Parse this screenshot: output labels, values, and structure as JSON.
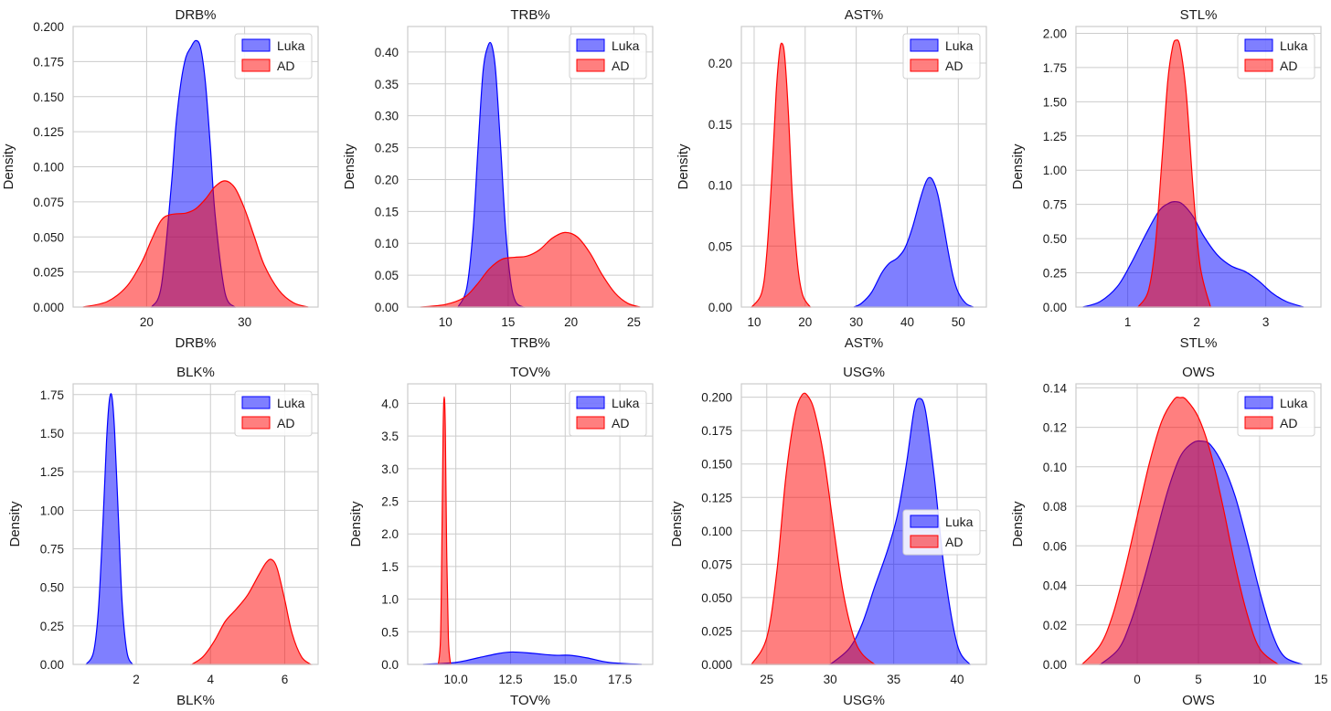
{
  "colors": {
    "luka": "#0000ff",
    "ad": "#ff0000",
    "grid": "#cccccc",
    "axis": "#cccccc"
  },
  "chart_data": [
    {
      "type": "area",
      "title": "DRB%",
      "xlabel": "DRB%",
      "ylabel": "Density",
      "xlim": [
        12.5,
        37.5
      ],
      "ylim": [
        0,
        0.2
      ],
      "xticks": [
        20,
        30
      ],
      "xtick_labels": [
        "20",
        "30"
      ],
      "yticks": [
        0,
        0.025,
        0.05,
        0.075,
        0.1,
        0.125,
        0.15,
        0.175,
        0.2
      ],
      "ytick_labels": [
        "0.000",
        "0.025",
        "0.050",
        "0.075",
        "0.100",
        "0.125",
        "0.150",
        "0.175",
        "0.200"
      ],
      "legend": {
        "position": "top-right",
        "entries": [
          "Luka",
          "AD"
        ]
      },
      "series": [
        {
          "name": "Luka",
          "color": "#0000ff",
          "x": [
            20.5,
            21.5,
            22.5,
            23.0,
            23.5,
            24.0,
            24.5,
            25.0,
            25.5,
            26.0,
            26.5,
            27.0,
            28.0,
            29.0
          ],
          "y": [
            0,
            0.015,
            0.085,
            0.13,
            0.16,
            0.178,
            0.185,
            0.19,
            0.185,
            0.16,
            0.115,
            0.065,
            0.01,
            0
          ]
        },
        {
          "name": "AD",
          "color": "#ff0000",
          "x": [
            13.5,
            16.0,
            18.0,
            19.5,
            20.5,
            21.5,
            22.5,
            24.0,
            25.0,
            26.0,
            27.0,
            28.0,
            29.0,
            30.0,
            31.0,
            32.0,
            33.5,
            35.0,
            36.5
          ],
          "y": [
            0,
            0.004,
            0.015,
            0.032,
            0.048,
            0.062,
            0.066,
            0.067,
            0.07,
            0.077,
            0.086,
            0.09,
            0.085,
            0.07,
            0.05,
            0.03,
            0.012,
            0.003,
            0
          ]
        }
      ]
    },
    {
      "type": "area",
      "title": "TRB%",
      "xlabel": "TRB%",
      "ylabel": "Density",
      "xlim": [
        7,
        26.5
      ],
      "ylim": [
        0,
        0.44
      ],
      "xticks": [
        10,
        15,
        20,
        25
      ],
      "xtick_labels": [
        "10",
        "15",
        "20",
        "25"
      ],
      "yticks": [
        0,
        0.05,
        0.1,
        0.15,
        0.2,
        0.25,
        0.3,
        0.35,
        0.4
      ],
      "ytick_labels": [
        "0.00",
        "0.05",
        "0.10",
        "0.15",
        "0.20",
        "0.25",
        "0.30",
        "0.35",
        "0.40"
      ],
      "legend": {
        "position": "top-right",
        "entries": [
          "Luka",
          "AD"
        ]
      },
      "series": [
        {
          "name": "Luka",
          "color": "#0000ff",
          "x": [
            11.0,
            11.7,
            12.2,
            12.6,
            13.0,
            13.4,
            13.7,
            14.0,
            14.4,
            14.8,
            15.2,
            15.6,
            16.2
          ],
          "y": [
            0,
            0.03,
            0.12,
            0.25,
            0.37,
            0.41,
            0.41,
            0.37,
            0.25,
            0.12,
            0.04,
            0.008,
            0
          ]
        },
        {
          "name": "AD",
          "color": "#ff0000",
          "x": [
            8.0,
            10.0,
            11.5,
            12.5,
            13.5,
            14.5,
            15.5,
            16.5,
            17.5,
            18.5,
            19.5,
            20.5,
            21.5,
            22.5,
            23.5,
            24.5,
            25.5
          ],
          "y": [
            0,
            0.004,
            0.015,
            0.035,
            0.06,
            0.075,
            0.078,
            0.08,
            0.09,
            0.108,
            0.117,
            0.11,
            0.085,
            0.05,
            0.022,
            0.006,
            0
          ]
        }
      ]
    },
    {
      "type": "area",
      "title": "AST%",
      "xlabel": "AST%",
      "ylabel": "Density",
      "xlim": [
        7.5,
        55.5
      ],
      "ylim": [
        0,
        0.23
      ],
      "xticks": [
        10,
        20,
        30,
        40,
        50
      ],
      "xtick_labels": [
        "10",
        "20",
        "30",
        "40",
        "50"
      ],
      "yticks": [
        0,
        0.05,
        0.1,
        0.15,
        0.2
      ],
      "ytick_labels": [
        "0.00",
        "0.05",
        "0.10",
        "0.15",
        "0.20"
      ],
      "legend": {
        "position": "top-right",
        "entries": [
          "Luka",
          "AD"
        ]
      },
      "series": [
        {
          "name": "Luka",
          "color": "#0000ff",
          "x": [
            29.5,
            31.0,
            33.0,
            35.0,
            36.5,
            38.0,
            39.5,
            41.0,
            42.5,
            43.5,
            44.2,
            45.0,
            46.0,
            47.0,
            48.0,
            49.0,
            50.0,
            51.5,
            53.0
          ],
          "y": [
            0,
            0.003,
            0.012,
            0.028,
            0.036,
            0.04,
            0.048,
            0.065,
            0.088,
            0.101,
            0.106,
            0.104,
            0.092,
            0.07,
            0.046,
            0.025,
            0.012,
            0.003,
            0
          ]
        },
        {
          "name": "AD",
          "color": "#ff0000",
          "x": [
            9.5,
            11.5,
            12.5,
            13.5,
            14.3,
            15.0,
            15.5,
            16.0,
            16.7,
            17.5,
            18.5,
            19.5,
            21.0
          ],
          "y": [
            0,
            0.012,
            0.045,
            0.11,
            0.175,
            0.21,
            0.216,
            0.205,
            0.16,
            0.09,
            0.035,
            0.01,
            0
          ]
        }
      ]
    },
    {
      "type": "area",
      "title": "STL%",
      "xlabel": "STL%",
      "ylabel": "Density",
      "xlim": [
        0.25,
        3.8
      ],
      "ylim": [
        0,
        2.05
      ],
      "xticks": [
        1,
        2,
        3
      ],
      "xtick_labels": [
        "1",
        "2",
        "3"
      ],
      "yticks": [
        0,
        0.25,
        0.5,
        0.75,
        1.0,
        1.25,
        1.5,
        1.75,
        2.0
      ],
      "ytick_labels": [
        "0.00",
        "0.25",
        "0.50",
        "0.75",
        "1.00",
        "1.25",
        "1.50",
        "1.75",
        "2.00"
      ],
      "legend": {
        "position": "top-right",
        "entries": [
          "Luka",
          "AD"
        ]
      },
      "series": [
        {
          "name": "Luka",
          "color": "#0000ff",
          "x": [
            0.35,
            0.6,
            0.85,
            1.05,
            1.25,
            1.45,
            1.6,
            1.7,
            1.8,
            1.95,
            2.1,
            2.3,
            2.5,
            2.7,
            2.9,
            3.1,
            3.3,
            3.55
          ],
          "y": [
            0,
            0.04,
            0.15,
            0.32,
            0.52,
            0.7,
            0.76,
            0.77,
            0.75,
            0.66,
            0.52,
            0.38,
            0.3,
            0.26,
            0.19,
            0.1,
            0.04,
            0
          ]
        },
        {
          "name": "AD",
          "color": "#ff0000",
          "x": [
            1.15,
            1.3,
            1.4,
            1.5,
            1.58,
            1.65,
            1.7,
            1.76,
            1.85,
            1.95,
            2.05,
            2.2
          ],
          "y": [
            0,
            0.12,
            0.45,
            1.1,
            1.65,
            1.9,
            1.95,
            1.9,
            1.55,
            0.85,
            0.3,
            0
          ]
        }
      ]
    },
    {
      "type": "area",
      "title": "BLK%",
      "xlabel": "BLK%",
      "ylabel": "Density",
      "xlim": [
        0.3,
        6.9
      ],
      "ylim": [
        0,
        1.82
      ],
      "xticks": [
        2,
        4,
        6
      ],
      "xtick_labels": [
        "2",
        "4",
        "6"
      ],
      "yticks": [
        0,
        0.25,
        0.5,
        0.75,
        1.0,
        1.25,
        1.5,
        1.75
      ],
      "ytick_labels": [
        "0.00",
        "0.25",
        "0.50",
        "0.75",
        "1.00",
        "1.25",
        "1.50",
        "1.75"
      ],
      "legend": {
        "position": "top-right",
        "entries": [
          "Luka",
          "AD"
        ]
      },
      "series": [
        {
          "name": "Luka",
          "color": "#0000ff",
          "x": [
            0.65,
            0.85,
            0.98,
            1.1,
            1.2,
            1.28,
            1.35,
            1.42,
            1.52,
            1.62,
            1.75,
            1.9
          ],
          "y": [
            0,
            0.08,
            0.35,
            0.9,
            1.45,
            1.72,
            1.73,
            1.5,
            0.95,
            0.4,
            0.08,
            0
          ]
        },
        {
          "name": "AD",
          "color": "#ff0000",
          "x": [
            3.5,
            3.8,
            4.1,
            4.4,
            4.7,
            5.0,
            5.3,
            5.5,
            5.65,
            5.8,
            6.0,
            6.2,
            6.45,
            6.7
          ],
          "y": [
            0,
            0.05,
            0.15,
            0.28,
            0.36,
            0.45,
            0.58,
            0.66,
            0.68,
            0.62,
            0.42,
            0.2,
            0.05,
            0
          ]
        }
      ]
    },
    {
      "type": "area",
      "title": "TOV%",
      "xlabel": "TOV%",
      "ylabel": "Density",
      "xlim": [
        7.8,
        19.0
      ],
      "ylim": [
        0,
        4.3
      ],
      "xticks": [
        10,
        12.5,
        15,
        17.5
      ],
      "xtick_labels": [
        "10.0",
        "12.5",
        "15.0",
        "17.5"
      ],
      "yticks": [
        0,
        0.5,
        1.0,
        1.5,
        2.0,
        2.5,
        3.0,
        3.5,
        4.0
      ],
      "ytick_labels": [
        "0.0",
        "0.5",
        "1.0",
        "1.5",
        "2.0",
        "2.5",
        "3.0",
        "3.5",
        "4.0"
      ],
      "legend": {
        "position": "top-right",
        "entries": [
          "Luka",
          "AD"
        ]
      },
      "series": [
        {
          "name": "Luka",
          "color": "#0000ff",
          "x": [
            8.5,
            10.0,
            11.0,
            12.0,
            12.6,
            13.5,
            14.5,
            15.2,
            16.0,
            17.0,
            18.5
          ],
          "y": [
            0,
            0.03,
            0.1,
            0.17,
            0.19,
            0.17,
            0.14,
            0.14,
            0.1,
            0.03,
            0
          ]
        },
        {
          "name": "AD",
          "color": "#ff0000",
          "x": [
            9.2,
            9.3,
            9.36,
            9.42,
            9.47,
            9.52,
            9.58,
            9.66,
            9.76
          ],
          "y": [
            0,
            0.4,
            1.8,
            3.6,
            4.1,
            3.6,
            1.8,
            0.4,
            0
          ]
        }
      ]
    },
    {
      "type": "area",
      "title": "USG%",
      "xlabel": "USG%",
      "ylabel": "Density",
      "xlim": [
        23.0,
        42.3
      ],
      "ylim": [
        0,
        0.21
      ],
      "xticks": [
        25,
        30,
        35,
        40
      ],
      "xtick_labels": [
        "25",
        "30",
        "35",
        "40"
      ],
      "yticks": [
        0,
        0.025,
        0.05,
        0.075,
        0.1,
        0.125,
        0.15,
        0.175,
        0.2
      ],
      "ytick_labels": [
        "0.000",
        "0.025",
        "0.050",
        "0.075",
        "0.100",
        "0.125",
        "0.150",
        "0.175",
        "0.200"
      ],
      "legend": {
        "position": "right",
        "entries": [
          "Luka",
          "AD"
        ]
      },
      "series": [
        {
          "name": "Luka",
          "color": "#0000ff",
          "x": [
            30.0,
            31.5,
            32.5,
            33.5,
            34.5,
            35.3,
            36.0,
            36.6,
            37.0,
            37.5,
            38.2,
            39.0,
            40.0,
            41.0
          ],
          "y": [
            0,
            0.012,
            0.03,
            0.058,
            0.085,
            0.112,
            0.15,
            0.19,
            0.199,
            0.19,
            0.14,
            0.07,
            0.015,
            0
          ]
        },
        {
          "name": "AD",
          "color": "#ff0000",
          "x": [
            23.8,
            25.0,
            25.8,
            26.5,
            27.2,
            27.8,
            28.3,
            28.8,
            29.5,
            30.3,
            31.0,
            31.8,
            32.5,
            33.5
          ],
          "y": [
            0,
            0.02,
            0.07,
            0.14,
            0.186,
            0.202,
            0.2,
            0.188,
            0.155,
            0.1,
            0.055,
            0.022,
            0.008,
            0
          ]
        }
      ]
    },
    {
      "type": "area",
      "title": "OWS",
      "xlabel": "OWS",
      "ylabel": "Density",
      "xlim": [
        -5.0,
        15.0
      ],
      "ylim": [
        0,
        0.142
      ],
      "xticks": [
        0,
        5,
        10,
        15
      ],
      "xtick_labels": [
        "0",
        "5",
        "10",
        "15"
      ],
      "yticks": [
        0,
        0.02,
        0.04,
        0.06,
        0.08,
        0.1,
        0.12,
        0.14
      ],
      "ytick_labels": [
        "0.00",
        "0.02",
        "0.04",
        "0.06",
        "0.08",
        "0.10",
        "0.12",
        "0.14"
      ],
      "legend": {
        "position": "top-right",
        "entries": [
          "Luka",
          "AD"
        ]
      },
      "series": [
        {
          "name": "Luka",
          "color": "#0000ff",
          "x": [
            -3.0,
            -1.5,
            -0.5,
            0.5,
            1.5,
            2.5,
            3.5,
            4.5,
            5.3,
            6.0,
            7.0,
            8.0,
            9.0,
            10.0,
            11.0,
            12.0,
            13.5
          ],
          "y": [
            0,
            0.008,
            0.022,
            0.042,
            0.065,
            0.088,
            0.105,
            0.112,
            0.113,
            0.111,
            0.101,
            0.085,
            0.062,
            0.037,
            0.016,
            0.004,
            0
          ]
        },
        {
          "name": "AD",
          "color": "#ff0000",
          "x": [
            -4.5,
            -3.0,
            -2.0,
            -1.0,
            0.0,
            1.0,
            2.0,
            3.0,
            3.5,
            4.0,
            5.0,
            6.0,
            7.0,
            8.0,
            9.0,
            10.0,
            11.5
          ],
          "y": [
            0,
            0.01,
            0.025,
            0.048,
            0.075,
            0.102,
            0.123,
            0.134,
            0.135,
            0.134,
            0.125,
            0.107,
            0.08,
            0.05,
            0.025,
            0.008,
            0
          ]
        }
      ]
    }
  ]
}
